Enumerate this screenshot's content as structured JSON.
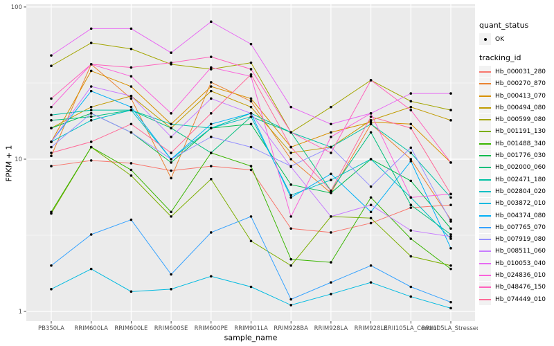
{
  "chart_data": {
    "type": "line",
    "title": "",
    "xlabel": "sample_name",
    "ylabel": "FPKM + 1",
    "y_scale": "log10",
    "grid": true,
    "legend_position": "right",
    "panel_bg": "#EBEBEB",
    "grid_color": "#FFFFFF",
    "point_color": "#000000",
    "tick_text_color": "#4D4D4D",
    "y_ticks": [
      "1",
      "10",
      "100"
    ],
    "y_tick_values": [
      1,
      10,
      100
    ],
    "y_minor_values": [
      3.162,
      31.623
    ],
    "ylim": [
      0.87,
      105
    ],
    "categories": [
      "PB350LA",
      "RRIM600LA",
      "RRIM600LE",
      "RRIM600SE",
      "RRIM600PE",
      "RRIM901LA",
      "RRIM928BA",
      "RRIM928LA",
      "RRIM928LE",
      "RRII105LA_Control",
      "RRII105LA_Stressed"
    ],
    "series": [
      {
        "name": "Hb_000031_280",
        "color": "#F8766D",
        "values": [
          9.0,
          9.8,
          9.4,
          8.4,
          9.0,
          8.5,
          3.5,
          3.3,
          3.8,
          4.8,
          5.0
        ]
      },
      {
        "name": "Hb_000270_870",
        "color": "#EA8331",
        "values": [
          10.5,
          42,
          25,
          7.5,
          32,
          24,
          10,
          6.0,
          17,
          10,
          4.0
        ]
      },
      {
        "name": "Hb_000413_070",
        "color": "#D89000",
        "values": [
          13,
          38,
          30,
          17,
          30,
          25,
          12,
          15,
          17.5,
          17,
          9.5
        ]
      },
      {
        "name": "Hb_000494_080",
        "color": "#C09B00",
        "values": [
          16,
          22,
          26,
          16,
          28,
          22,
          11,
          12,
          18,
          22,
          18
        ]
      },
      {
        "name": "Hb_000599_080",
        "color": "#A3A500",
        "values": [
          41,
          58,
          53,
          42,
          39,
          43,
          15,
          22,
          33,
          24,
          21
        ]
      },
      {
        "name": "Hb_001191_130",
        "color": "#7CAE00",
        "values": [
          4.4,
          12,
          7.8,
          4.2,
          7.4,
          2.9,
          2.0,
          4.2,
          4.1,
          2.3,
          2.0
        ]
      },
      {
        "name": "Hb_001488_340",
        "color": "#39B600",
        "values": [
          4.5,
          12,
          8.5,
          4.5,
          11,
          9.0,
          2.2,
          2.1,
          5.6,
          3.0,
          1.9
        ]
      },
      {
        "name": "Hb_001776_030",
        "color": "#00BB4E",
        "values": [
          16,
          20,
          15,
          9.5,
          16,
          17,
          6.8,
          6.0,
          10,
          7.2,
          3.5
        ]
      },
      {
        "name": "Hb_002000_060",
        "color": "#00BF7D",
        "values": [
          18,
          19,
          21,
          16,
          11,
          19,
          15,
          6.2,
          15,
          5.0,
          3.2
        ]
      },
      {
        "name": "Hb_002471_180",
        "color": "#00C1A3",
        "values": [
          19.5,
          21,
          21,
          17,
          16,
          20,
          15,
          12,
          17,
          11,
          5.6
        ]
      },
      {
        "name": "Hb_002804_020",
        "color": "#00BFC4",
        "values": [
          13,
          18,
          21,
          10,
          16,
          19,
          5.8,
          7.3,
          10,
          5.6,
          3.0
        ]
      },
      {
        "name": "Hb_003872_010",
        "color": "#00BAE0",
        "values": [
          1.4,
          1.9,
          1.35,
          1.4,
          1.7,
          1.45,
          1.1,
          1.3,
          1.55,
          1.25,
          1.05
        ]
      },
      {
        "name": "Hb_004374_080",
        "color": "#00B0F6",
        "values": [
          13,
          28,
          22,
          10,
          17,
          20,
          5.6,
          8.0,
          4.5,
          9.7,
          2.6
        ]
      },
      {
        "name": "Hb_007765_070",
        "color": "#35A2FF",
        "values": [
          2.0,
          3.2,
          4.0,
          1.75,
          3.3,
          4.2,
          1.2,
          1.55,
          2.0,
          1.45,
          1.15
        ]
      },
      {
        "name": "Hb_007919_080",
        "color": "#9590FF",
        "values": [
          12,
          20,
          15,
          10,
          14,
          12,
          9.0,
          12,
          6.6,
          11.9,
          3.9
        ]
      },
      {
        "name": "Hb_008511_060",
        "color": "#C77CFF",
        "values": [
          13,
          30,
          26,
          14,
          25,
          20,
          8.9,
          4.2,
          5.0,
          3.4,
          3.1
        ]
      },
      {
        "name": "Hb_010053_040",
        "color": "#E76BF3",
        "values": [
          48,
          72,
          72,
          50,
          80,
          57,
          22,
          17,
          20,
          27,
          27
        ]
      },
      {
        "name": "Hb_024836_010",
        "color": "#FA62DB",
        "values": [
          22,
          42,
          35,
          20,
          40,
          35,
          4.2,
          14,
          20,
          5.6,
          5.9
        ]
      },
      {
        "name": "Hb_048476_150",
        "color": "#FF62BC",
        "values": [
          25,
          42,
          40,
          43,
          47,
          39,
          15,
          11,
          33,
          21,
          9.5
        ]
      },
      {
        "name": "Hb_074449_010",
        "color": "#FF6A98",
        "values": [
          11,
          13,
          17,
          11,
          20,
          36,
          12,
          6.2,
          19,
          16,
          5.9
        ]
      }
    ]
  },
  "legend": {
    "key_bg": "#F2F2F2",
    "quant_status": {
      "title": "quant_status",
      "items": [
        {
          "label": "OK",
          "marker": "point-icon"
        }
      ]
    },
    "tracking_id": {
      "title": "tracking_id"
    }
  }
}
